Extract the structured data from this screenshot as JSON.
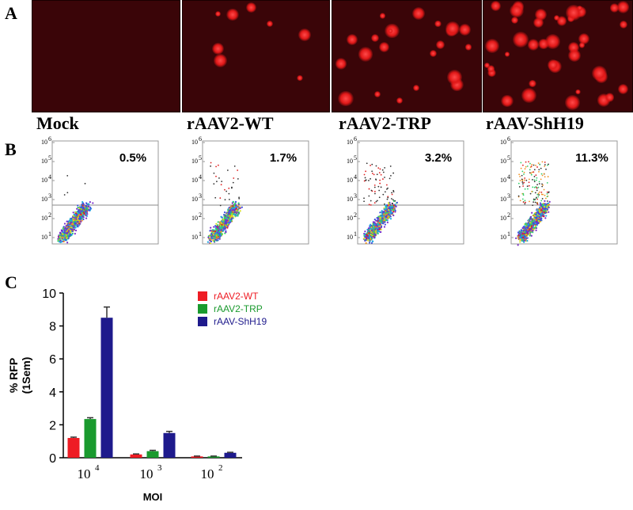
{
  "panel_letters": {
    "a": "A",
    "b": "B",
    "c": "C"
  },
  "conditions": [
    "Mock",
    "rAAV2-WT",
    "rAAV2-TRP",
    "rAAV-ShH19"
  ],
  "percentages": [
    "0.5%",
    "1.7%",
    "3.2%",
    "11.3%"
  ],
  "flow_ticks": [
    "10",
    "10",
    "10",
    "10",
    "10",
    "10"
  ],
  "flow_tick_exponents": [
    "6",
    "5",
    "4",
    "3",
    "2",
    "1"
  ],
  "colors": {
    "wt": "#ee1c24",
    "trp": "#1a9a2e",
    "shh19": "#1e1a8c",
    "micro_bg": "#3a0508"
  },
  "chart_data": {
    "type": "bar",
    "categories": [
      "10",
      "10",
      "10"
    ],
    "category_exponents": [
      "4",
      "3",
      "2"
    ],
    "series": [
      {
        "name": "rAAV2-WT",
        "values": [
          1.2,
          0.2,
          0.08
        ],
        "errors": [
          0.05,
          0.03,
          0.02
        ]
      },
      {
        "name": "rAAV2-TRP",
        "values": [
          2.35,
          0.4,
          0.08
        ],
        "errors": [
          0.08,
          0.05,
          0.02
        ]
      },
      {
        "name": "rAAV-ShH19",
        "values": [
          8.5,
          1.5,
          0.3
        ],
        "errors": [
          0.65,
          0.1,
          0.03
        ]
      }
    ],
    "xlabel": "MOI",
    "ylabel": "% RFP",
    "ylabel2": "(1Sem)",
    "ylim": [
      0,
      10
    ],
    "yticks": [
      0,
      2,
      4,
      6,
      8,
      10
    ],
    "legend": "top-right"
  }
}
